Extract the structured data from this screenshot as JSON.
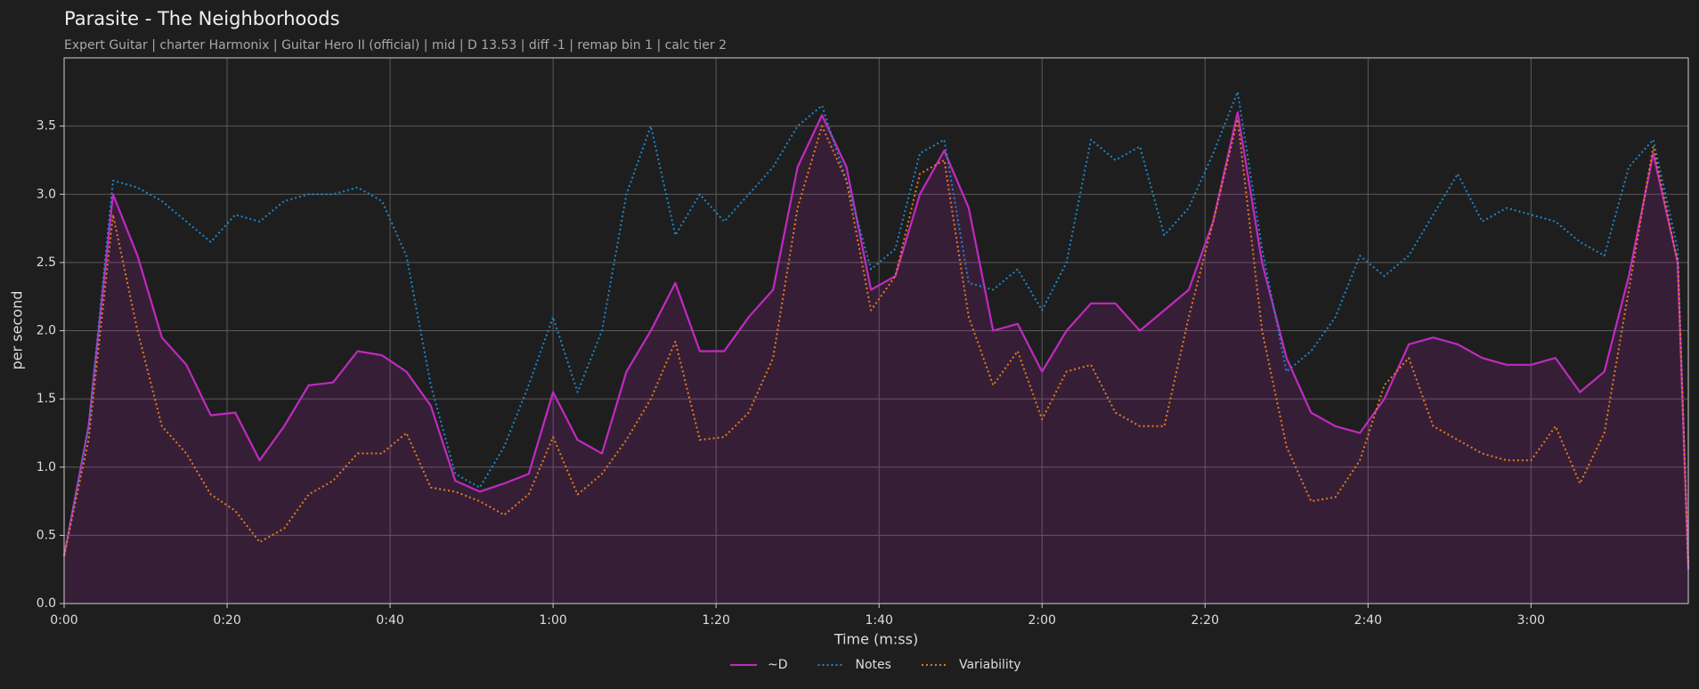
{
  "chart_data": {
    "type": "line",
    "title": "Parasite - The Neighborhoods",
    "subtitle": "Expert Guitar  |  charter Harmonix  |  Guitar Hero II (official)  |  mid  |  D 13.53  |  diff -1  |  remap bin 1  |  calc tier 2",
    "x_label": "Time (m:ss)",
    "y_label": "per second",
    "x": [
      0,
      3,
      6,
      9,
      12,
      15,
      18,
      21,
      24,
      27,
      30,
      33,
      36,
      39,
      42,
      45,
      48,
      51,
      54,
      57,
      60,
      63,
      66,
      69,
      72,
      75,
      78,
      81,
      84,
      87,
      90,
      93,
      96,
      99,
      102,
      105,
      108,
      111,
      114,
      117,
      120,
      123,
      126,
      129,
      132,
      135,
      138,
      141,
      144,
      147,
      150,
      153,
      156,
      159,
      162,
      165,
      168,
      171,
      174,
      177,
      180,
      183,
      186,
      189,
      192,
      195,
      198,
      199.3
    ],
    "series": [
      {
        "name": "~D",
        "color": "#c02ac0",
        "style": "solid",
        "fill": true,
        "values": [
          0.35,
          1.3,
          3.0,
          2.55,
          1.95,
          1.75,
          1.38,
          1.4,
          1.05,
          1.3,
          1.6,
          1.62,
          1.85,
          1.82,
          1.7,
          1.45,
          0.9,
          0.82,
          0.88,
          0.95,
          1.55,
          1.2,
          1.1,
          1.7,
          2.0,
          2.35,
          1.85,
          1.85,
          2.1,
          2.3,
          3.2,
          3.58,
          3.2,
          2.3,
          2.4,
          3.0,
          3.32,
          2.9,
          2.0,
          2.05,
          1.7,
          2.0,
          2.2,
          2.2,
          2.0,
          2.15,
          2.3,
          2.8,
          3.6,
          2.5,
          1.8,
          1.4,
          1.3,
          1.25,
          1.5,
          1.9,
          1.95,
          1.9,
          1.8,
          1.75,
          1.75,
          1.8,
          1.55,
          1.7,
          2.4,
          3.3,
          2.5,
          0.25
        ]
      },
      {
        "name": "Notes",
        "color": "#1f86c8",
        "style": "dotted",
        "fill": false,
        "values": [
          0.35,
          1.3,
          3.1,
          3.05,
          2.95,
          2.8,
          2.65,
          2.85,
          2.8,
          2.95,
          3.0,
          3.0,
          3.05,
          2.95,
          2.55,
          1.6,
          0.95,
          0.85,
          1.15,
          1.6,
          2.1,
          1.55,
          2.0,
          3.0,
          3.5,
          2.7,
          3.0,
          2.8,
          3.0,
          3.2,
          3.5,
          3.65,
          3.1,
          2.45,
          2.6,
          3.3,
          3.4,
          2.35,
          2.3,
          2.45,
          2.15,
          2.5,
          3.4,
          3.25,
          3.35,
          2.7,
          2.9,
          3.3,
          3.75,
          2.6,
          1.7,
          1.85,
          2.1,
          2.55,
          2.4,
          2.55,
          2.85,
          3.15,
          2.8,
          2.9,
          2.85,
          2.8,
          2.65,
          2.55,
          3.2,
          3.4,
          2.6,
          0.25
        ]
      },
      {
        "name": "Variability",
        "color": "#e67a1e",
        "style": "dotted",
        "fill": false,
        "values": [
          0.35,
          1.2,
          2.85,
          2.0,
          1.3,
          1.1,
          0.8,
          0.68,
          0.45,
          0.55,
          0.8,
          0.9,
          1.1,
          1.1,
          1.25,
          0.85,
          0.82,
          0.75,
          0.65,
          0.8,
          1.22,
          0.8,
          0.95,
          1.2,
          1.5,
          1.92,
          1.2,
          1.22,
          1.4,
          1.8,
          2.9,
          3.5,
          3.1,
          2.15,
          2.4,
          3.15,
          3.25,
          2.1,
          1.6,
          1.85,
          1.35,
          1.7,
          1.75,
          1.4,
          1.3,
          1.3,
          2.1,
          2.8,
          3.55,
          2.0,
          1.15,
          0.75,
          0.78,
          1.05,
          1.6,
          1.8,
          1.3,
          1.2,
          1.1,
          1.05,
          1.05,
          1.3,
          0.88,
          1.25,
          2.3,
          3.35,
          2.5,
          0.3
        ]
      }
    ],
    "xlim": [
      0,
      199.3
    ],
    "xticks": [
      {
        "value": 0,
        "label": "0:00"
      },
      {
        "value": 20,
        "label": "0:20"
      },
      {
        "value": 40,
        "label": "0:40"
      },
      {
        "value": 60,
        "label": "1:00"
      },
      {
        "value": 80,
        "label": "1:20"
      },
      {
        "value": 100,
        "label": "1:40"
      },
      {
        "value": 120,
        "label": "2:00"
      },
      {
        "value": 140,
        "label": "2:20"
      },
      {
        "value": 160,
        "label": "2:40"
      },
      {
        "value": 180,
        "label": "3:00"
      }
    ],
    "ylim": [
      0,
      4.0
    ],
    "yticks": [
      {
        "value": 0,
        "label": "0.0"
      },
      0.5,
      {
        "value": 1,
        "label": "1.0"
      },
      1.5,
      {
        "value": 2,
        "label": "2.0"
      },
      2.5,
      {
        "value": 3,
        "label": "3.0"
      },
      3.5
    ],
    "grid": true,
    "legend": "bottom"
  }
}
